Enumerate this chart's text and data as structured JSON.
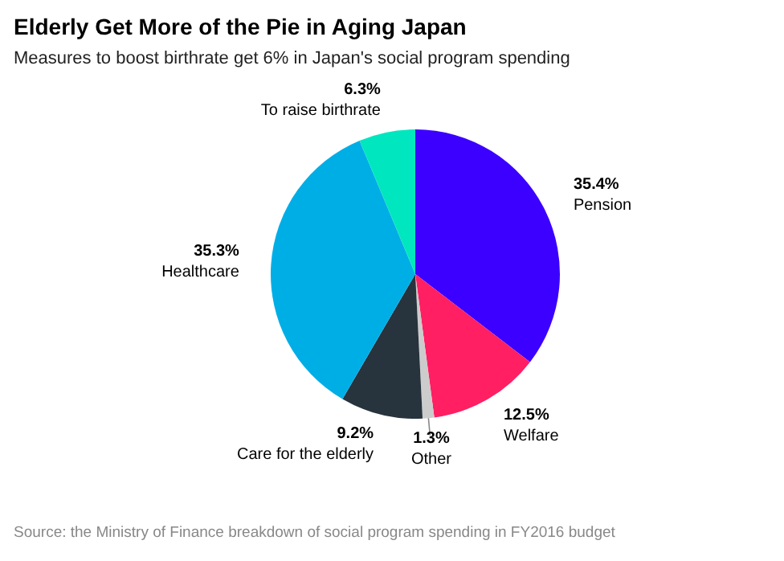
{
  "chart_data": {
    "type": "pie",
    "title": "Elderly Get More of the Pie in Aging Japan",
    "subtitle": "Measures to boost birthrate get 6% in Japan's social program spending",
    "categories": [
      "Pension",
      "Welfare",
      "Other",
      "Care for the elderly",
      "Healthcare",
      "To raise birthrate"
    ],
    "values": [
      35.4,
      12.5,
      1.3,
      9.2,
      35.3,
      6.3
    ],
    "colors": [
      "#3b00ff",
      "#ff1f62",
      "#cccccc",
      "#27333d",
      "#00aee6",
      "#00e6be"
    ],
    "value_labels": [
      "35.4%",
      "12.5%",
      "1.3%",
      "9.2%",
      "35.3%",
      "6.3%"
    ],
    "annotations": [
      "Source: the Ministry of Finance breakdown of social program spending in FY2016 budget"
    ]
  }
}
